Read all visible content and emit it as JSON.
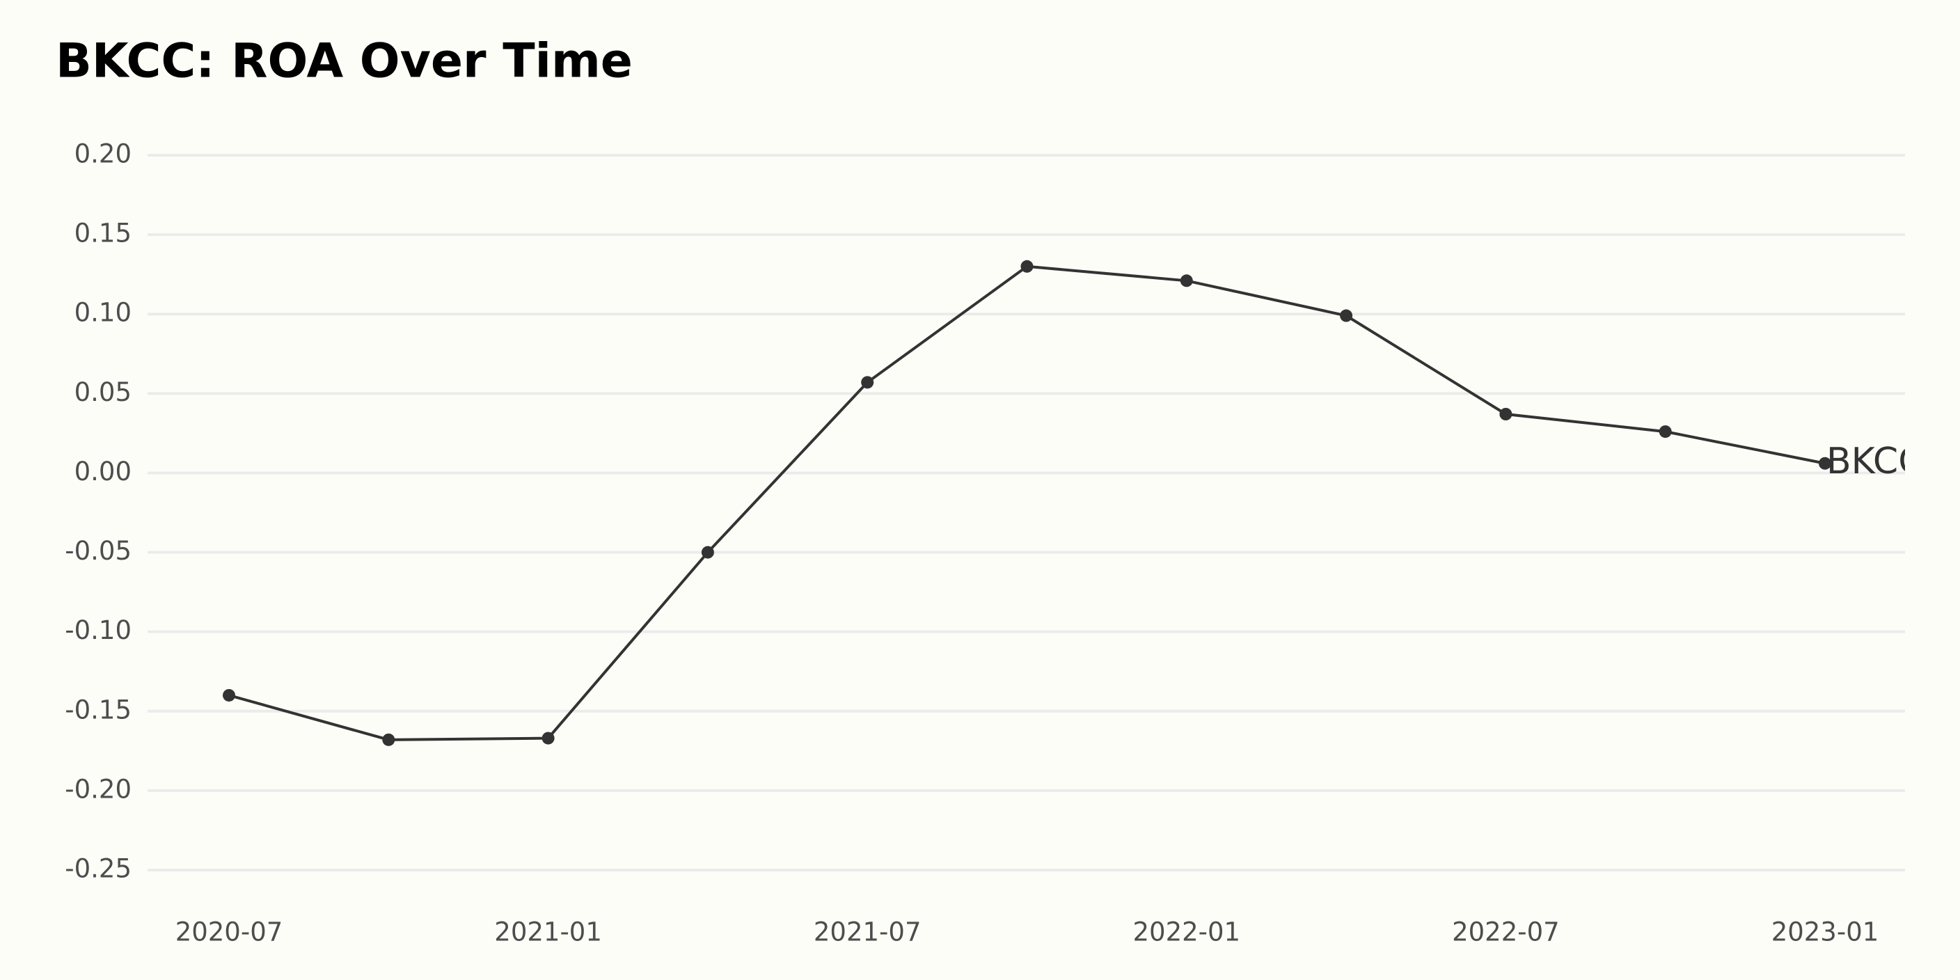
{
  "chart_data": {
    "type": "line",
    "title": "BKCC: ROA Over Time",
    "x": [
      "2020-07",
      "2020-10",
      "2021-01",
      "2021-04",
      "2021-07",
      "2021-10",
      "2022-01",
      "2022-04",
      "2022-07",
      "2022-10",
      "2023-01"
    ],
    "series": [
      {
        "name": "BKCC",
        "color": "#333333",
        "values": [
          -0.14,
          -0.168,
          -0.167,
          -0.05,
          0.057,
          0.13,
          0.121,
          0.099,
          0.037,
          0.026,
          0.006
        ]
      }
    ],
    "ylim": [
      -0.25,
      0.2
    ],
    "yticks": [
      {
        "value": 0.2,
        "label": "0.20"
      },
      0.15,
      {
        "value": 0.1,
        "label": "0.10"
      },
      0.05,
      {
        "value": 0,
        "label": "0.00"
      },
      -0.05,
      {
        "value": -0.1,
        "label": "-0.10"
      },
      -0.15,
      {
        "value": -0.2,
        "label": "-0.20"
      },
      -0.25
    ],
    "xticks": [
      "2020-07",
      "2021-01",
      "2021-07",
      "2022-01",
      "2022-07",
      "2023-01"
    ],
    "grid": true
  }
}
